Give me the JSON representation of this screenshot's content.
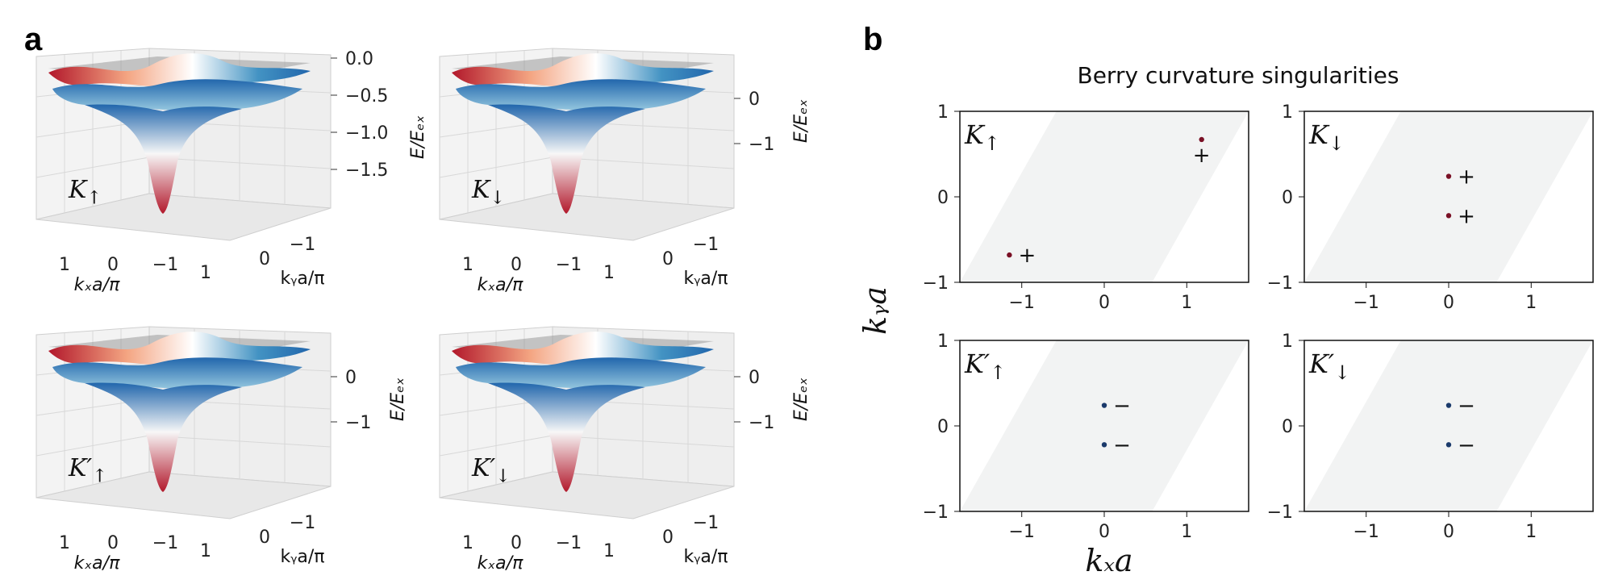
{
  "panel_labels": {
    "a": "a",
    "b": "b"
  },
  "colors": {
    "surface_low": "#b2182b",
    "surface_high": "#2166ac",
    "point_plus": "#7a1025",
    "point_minus": "#1b3a6b",
    "rhombus_fill": "#f2f3f3"
  },
  "panel_a": {
    "x_axis_label": "kₓa/π",
    "y_axis_label": "kᵧa/π",
    "z_axis_label": "E/Eₑₓ",
    "x_ticks": [
      "1",
      "0",
      "−1"
    ],
    "y_ticks": [
      "−1",
      "0",
      "1"
    ],
    "subplots": [
      {
        "valley_label": "K",
        "valley_sub": "↑",
        "z_ticks": [
          "0.0",
          "−0.5",
          "−1.0",
          "−1.5"
        ]
      },
      {
        "valley_label": "K",
        "valley_sub": "↓",
        "z_ticks": [
          "0",
          "−1"
        ]
      },
      {
        "valley_label": "K′",
        "valley_sub": "↑",
        "z_ticks": [
          "0",
          "−1"
        ]
      },
      {
        "valley_label": "K′",
        "valley_sub": "↓",
        "z_ticks": [
          "0",
          "−1"
        ]
      }
    ]
  },
  "chart_data": {
    "type": "scatter",
    "title": "Berry curvature singularities",
    "xlabel": "kₓa",
    "ylabel": "kᵧa",
    "xlim": [
      -1.75,
      1.75
    ],
    "ylim": [
      -1,
      1
    ],
    "x_ticks": [
      "−1",
      "0",
      "1"
    ],
    "y_ticks": [
      "−1",
      "0",
      "1"
    ],
    "panels": [
      {
        "label": "K",
        "sub": "↑",
        "points": [
          {
            "x": -1.15,
            "y": -0.68,
            "sign": "+"
          },
          {
            "x": 1.18,
            "y": 0.67,
            "sign": "+"
          }
        ]
      },
      {
        "label": "K",
        "sub": "↓",
        "points": [
          {
            "x": 0.0,
            "y": 0.24,
            "sign": "+"
          },
          {
            "x": 0.0,
            "y": -0.22,
            "sign": "+"
          }
        ]
      },
      {
        "label": "K′",
        "sub": "↑",
        "points": [
          {
            "x": 0.0,
            "y": 0.24,
            "sign": "−"
          },
          {
            "x": 0.0,
            "y": -0.22,
            "sign": "−"
          }
        ]
      },
      {
        "label": "K′",
        "sub": "↓",
        "points": [
          {
            "x": 0.0,
            "y": 0.24,
            "sign": "−"
          },
          {
            "x": 0.0,
            "y": -0.22,
            "sign": "−"
          }
        ]
      }
    ]
  }
}
